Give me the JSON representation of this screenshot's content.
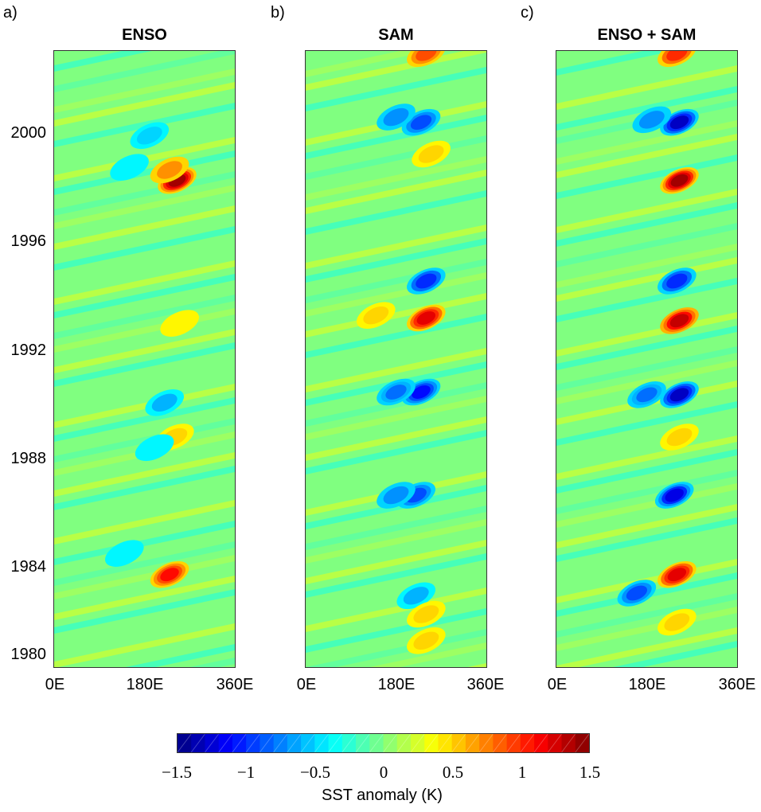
{
  "chart_data": [
    {
      "type": "heatmap",
      "panel_label": "a)",
      "title": "ENSO",
      "x_ticks": [
        "0E",
        "180E",
        "360E"
      ],
      "xlim": [
        0,
        360
      ],
      "y_ticks": [
        "1980",
        "1984",
        "1988",
        "1992",
        "1996",
        "2000"
      ],
      "ylim": [
        1979.5,
        2002.8
      ],
      "features": [
        {
          "lon": 245,
          "year": 1997.9,
          "value": 1.4
        },
        {
          "lon": 230,
          "year": 1998.3,
          "value": 0.7
        },
        {
          "lon": 240,
          "year": 1988.2,
          "value": 0.5
        },
        {
          "lon": 230,
          "year": 1983.0,
          "value": 1.1
        },
        {
          "lon": 220,
          "year": 1989.5,
          "value": -0.6
        },
        {
          "lon": 150,
          "year": 1998.4,
          "value": -0.4
        },
        {
          "lon": 190,
          "year": 1999.6,
          "value": -0.5
        },
        {
          "lon": 140,
          "year": 1983.8,
          "value": -0.4
        },
        {
          "lon": 250,
          "year": 1992.5,
          "value": 0.4
        },
        {
          "lon": 200,
          "year": 1987.8,
          "value": -0.4
        }
      ]
    },
    {
      "type": "heatmap",
      "panel_label": "b)",
      "title": "SAM",
      "x_ticks": [
        "0E",
        "180E",
        "360E"
      ],
      "xlim": [
        0,
        360
      ],
      "y_ticks": [
        "1980",
        "1984",
        "1988",
        "1992",
        "1996",
        "2000"
      ],
      "ylim": [
        1979.5,
        2002.8
      ],
      "features": [
        {
          "lon": 240,
          "year": 2002.7,
          "value": 0.9
        },
        {
          "lon": 230,
          "year": 2000.1,
          "value": -0.9
        },
        {
          "lon": 180,
          "year": 2000.3,
          "value": -0.7
        },
        {
          "lon": 250,
          "year": 1998.9,
          "value": 0.5
        },
        {
          "lon": 240,
          "year": 1994.1,
          "value": -1.0
        },
        {
          "lon": 240,
          "year": 1992.7,
          "value": 1.2
        },
        {
          "lon": 140,
          "year": 1992.8,
          "value": 0.5
        },
        {
          "lon": 230,
          "year": 1989.9,
          "value": -1.1
        },
        {
          "lon": 180,
          "year": 1989.9,
          "value": -0.8
        },
        {
          "lon": 220,
          "year": 1986.0,
          "value": -0.9
        },
        {
          "lon": 180,
          "year": 1986.0,
          "value": -0.7
        },
        {
          "lon": 220,
          "year": 1982.2,
          "value": -0.6
        },
        {
          "lon": 240,
          "year": 1980.5,
          "value": 0.5
        },
        {
          "lon": 240,
          "year": 1981.5,
          "value": 0.5
        }
      ]
    },
    {
      "type": "heatmap",
      "panel_label": "c)",
      "title": "ENSO + SAM",
      "x_ticks": [
        "0E",
        "180E",
        "360E"
      ],
      "xlim": [
        0,
        360
      ],
      "y_ticks": [
        "1980",
        "1984",
        "1988",
        "1992",
        "1996",
        "2000"
      ],
      "ylim": [
        1979.5,
        2002.8
      ],
      "features": [
        {
          "lon": 240,
          "year": 2002.7,
          "value": 1.0
        },
        {
          "lon": 245,
          "year": 2000.1,
          "value": -1.3
        },
        {
          "lon": 190,
          "year": 2000.2,
          "value": -0.7
        },
        {
          "lon": 245,
          "year": 1997.9,
          "value": 1.4
        },
        {
          "lon": 240,
          "year": 1994.1,
          "value": -1.0
        },
        {
          "lon": 245,
          "year": 1992.6,
          "value": 1.3
        },
        {
          "lon": 245,
          "year": 1989.8,
          "value": -1.3
        },
        {
          "lon": 180,
          "year": 1989.8,
          "value": -0.8
        },
        {
          "lon": 245,
          "year": 1988.2,
          "value": 0.5
        },
        {
          "lon": 235,
          "year": 1986.0,
          "value": -1.2
        },
        {
          "lon": 240,
          "year": 1983.0,
          "value": 1.2
        },
        {
          "lon": 160,
          "year": 1982.3,
          "value": -0.9
        },
        {
          "lon": 240,
          "year": 1981.2,
          "value": 0.5
        }
      ]
    }
  ],
  "colorbar": {
    "label": "SST anomaly (K)",
    "ticks": [
      "−1.5",
      "−1",
      "−0.5",
      "0",
      "0.5",
      "1",
      "1.5"
    ],
    "range": [
      -1.5,
      1.5
    ],
    "colormap": "jet"
  }
}
